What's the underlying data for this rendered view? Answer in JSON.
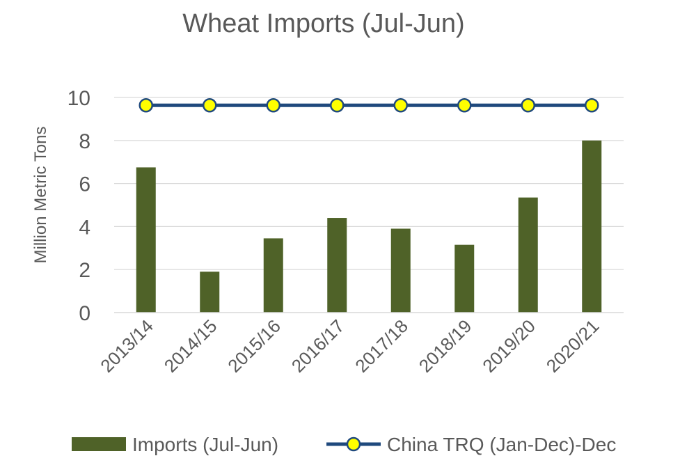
{
  "chart_data": {
    "type": "bar",
    "title": "Wheat Imports (Jul-Jun)",
    "xlabel": "",
    "ylabel": "Million Metric Tons",
    "ylim": [
      0,
      10
    ],
    "yticks": [
      0,
      2,
      4,
      6,
      8,
      10
    ],
    "grid": true,
    "legend_position": "bottom",
    "categories": [
      "2013/14",
      "2014/15",
      "2015/16",
      "2016/17",
      "2017/18",
      "2018/19",
      "2019/20",
      "2020/21"
    ],
    "series": [
      {
        "name": "Imports (Jul-Jun)",
        "type": "bar",
        "color": "#4f6228",
        "values": [
          6.75,
          1.9,
          3.45,
          4.4,
          3.9,
          3.15,
          5.35,
          8.0
        ]
      },
      {
        "name": "China TRQ (Jan-Dec)-Dec",
        "type": "line",
        "color": "#1f497d",
        "marker_color": "#ffff00",
        "values": [
          9.636,
          9.636,
          9.636,
          9.636,
          9.636,
          9.636,
          9.636,
          9.636
        ]
      }
    ]
  }
}
